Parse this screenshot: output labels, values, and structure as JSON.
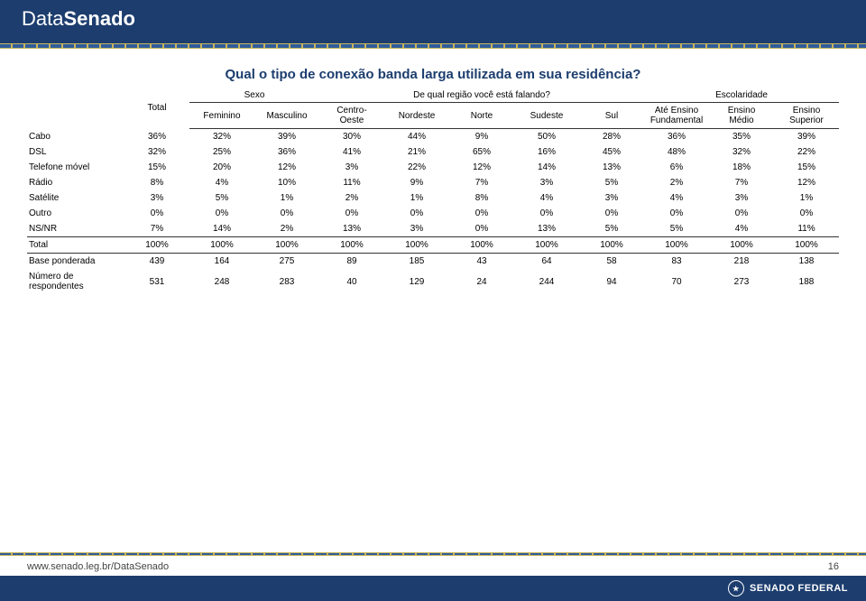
{
  "header": {
    "logo_light": "Data",
    "logo_bold": "Senado"
  },
  "table": {
    "title": "Qual o tipo de conexão banda larga utilizada em sua residência?",
    "group_headers": {
      "sexo": "Sexo",
      "regiao": "De qual região você está falando?",
      "escolaridade": "Escolaridade"
    },
    "columns": {
      "total": "Total",
      "sexo": [
        "Feminino",
        "Masculino"
      ],
      "regiao": [
        "Centro-\nOeste",
        "Nordeste",
        "Norte",
        "Sudeste",
        "Sul"
      ],
      "escolaridade": [
        "Até Ensino\nFundamental",
        "Ensino\nMédio",
        "Ensino\nSuperior"
      ]
    },
    "rows": [
      {
        "label": "Cabo",
        "v": [
          "36%",
          "32%",
          "39%",
          "30%",
          "44%",
          "9%",
          "50%",
          "28%",
          "36%",
          "35%",
          "39%"
        ]
      },
      {
        "label": "DSL",
        "v": [
          "32%",
          "25%",
          "36%",
          "41%",
          "21%",
          "65%",
          "16%",
          "45%",
          "48%",
          "32%",
          "22%"
        ]
      },
      {
        "label": "Telefone móvel",
        "v": [
          "15%",
          "20%",
          "12%",
          "3%",
          "22%",
          "12%",
          "14%",
          "13%",
          "6%",
          "18%",
          "15%"
        ]
      },
      {
        "label": "Rádio",
        "v": [
          "8%",
          "4%",
          "10%",
          "11%",
          "9%",
          "7%",
          "3%",
          "5%",
          "2%",
          "7%",
          "12%"
        ]
      },
      {
        "label": "Satélite",
        "v": [
          "3%",
          "5%",
          "1%",
          "2%",
          "1%",
          "8%",
          "4%",
          "3%",
          "4%",
          "3%",
          "1%"
        ]
      },
      {
        "label": "Outro",
        "v": [
          "0%",
          "0%",
          "0%",
          "0%",
          "0%",
          "0%",
          "0%",
          "0%",
          "0%",
          "0%",
          "0%"
        ]
      },
      {
        "label": "NS/NR",
        "v": [
          "7%",
          "14%",
          "2%",
          "13%",
          "3%",
          "0%",
          "13%",
          "5%",
          "5%",
          "4%",
          "11%"
        ]
      }
    ],
    "total_row": {
      "label": "Total",
      "v": [
        "100%",
        "100%",
        "100%",
        "100%",
        "100%",
        "100%",
        "100%",
        "100%",
        "100%",
        "100%",
        "100%"
      ]
    },
    "base_row": {
      "label": "Base ponderada",
      "v": [
        "439",
        "164",
        "275",
        "89",
        "185",
        "43",
        "64",
        "58",
        "83",
        "218",
        "138"
      ]
    },
    "resp_row": {
      "label": "Número de\nrespondentes",
      "v": [
        "531",
        "248",
        "283",
        "40",
        "129",
        "24",
        "244",
        "94",
        "70",
        "273",
        "188"
      ]
    },
    "col_widths": [
      "12%",
      "8%",
      "8%",
      "8%",
      "8%",
      "8%",
      "8%",
      "8%",
      "8%",
      "8%",
      "8%",
      "8%"
    ]
  },
  "colors": {
    "brand_bg": "#1c3d6e",
    "accent": "#c9b45e",
    "text": "#000000",
    "footer_text": "#444444"
  },
  "footer": {
    "url": "www.senado.leg.br/DataSenado",
    "page": "16",
    "org": "SENADO FEDERAL"
  }
}
